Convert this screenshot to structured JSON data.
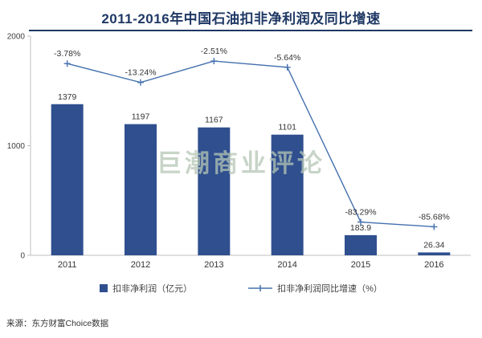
{
  "title": "2011-2016年中国石油扣非净利润及同比增速",
  "watermark": "巨潮商业评论",
  "source": "来源：东方财富Choice数据",
  "legend": {
    "bar_label": "扣非净利润（亿元）",
    "line_label": "扣非净利润同比增速（%）"
  },
  "colors": {
    "title": "#1F3864",
    "bar": "#2F4F8F",
    "line": "#4470AE",
    "axis": "#BFBFBF",
    "label": "#404040",
    "watermark": "#B5C6B5"
  },
  "chart_data": {
    "type": "bar+line",
    "title": "2011-2016年中国石油扣非净利润及同比增速",
    "categories": [
      "2011",
      "2012",
      "2013",
      "2014",
      "2015",
      "2016"
    ],
    "series": [
      {
        "name": "扣非净利润（亿元）",
        "type": "bar",
        "values": [
          1379,
          1197,
          1167,
          1101,
          183.9,
          26.34
        ],
        "labels": [
          "1379",
          "1197",
          "1167",
          "1101",
          "183.9",
          "26.34"
        ]
      },
      {
        "name": "扣非净利润同比增速（%）",
        "type": "line",
        "values": [
          -3.78,
          -13.24,
          -2.51,
          -5.64,
          -83.29,
          -85.68
        ],
        "labels": [
          "-3.78%",
          "-13.24%",
          "-2.51%",
          "-5.64%",
          "-83.29%",
          "-85.68%"
        ]
      }
    ],
    "y_axis": {
      "ticks": [
        0,
        1000,
        2000
      ],
      "range": [
        0,
        2000
      ]
    },
    "y2_axis": {
      "range": [
        -100,
        10
      ],
      "visible": false
    },
    "grid": false,
    "legend_position": "bottom"
  }
}
